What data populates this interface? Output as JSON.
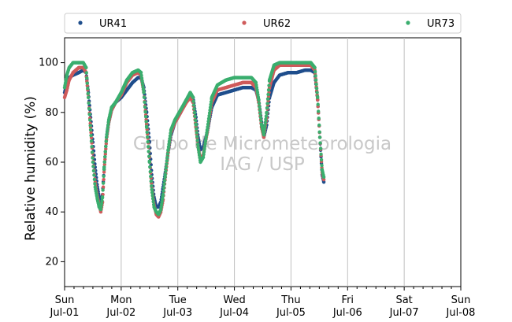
{
  "chart_data": {
    "type": "scatter",
    "ylabel": "Relative humidity (%)",
    "ylim": [
      10,
      110
    ],
    "yticks": [
      20,
      40,
      60,
      80,
      100
    ],
    "xlim": [
      0,
      7
    ],
    "xticks": [
      {
        "day": "Sun",
        "date": "Jul-01"
      },
      {
        "day": "Mon",
        "date": "Jul-02"
      },
      {
        "day": "Tue",
        "date": "Jul-03"
      },
      {
        "day": "Wed",
        "date": "Jul-04"
      },
      {
        "day": "Thu",
        "date": "Jul-05"
      },
      {
        "day": "Fri",
        "date": "Jul-06"
      },
      {
        "day": "Sat",
        "date": "Jul-07"
      },
      {
        "day": "Sun",
        "date": "Jul-08"
      }
    ],
    "grid": "vertical",
    "legend_position": "top",
    "watermark": [
      "Grupo de Micrometeorologia",
      "IAG / USP"
    ],
    "series": [
      {
        "name": "UR41",
        "color": "#1f4e8c",
        "points": [
          [
            0.0,
            88
          ],
          [
            0.04,
            92
          ],
          [
            0.08,
            94
          ],
          [
            0.15,
            95
          ],
          [
            0.25,
            96
          ],
          [
            0.33,
            97
          ],
          [
            0.38,
            96
          ],
          [
            0.42,
            88
          ],
          [
            0.46,
            78
          ],
          [
            0.5,
            68
          ],
          [
            0.54,
            58
          ],
          [
            0.58,
            50
          ],
          [
            0.61,
            46
          ],
          [
            0.64,
            44
          ],
          [
            0.67,
            47
          ],
          [
            0.7,
            58
          ],
          [
            0.74,
            70
          ],
          [
            0.78,
            76
          ],
          [
            0.83,
            81
          ],
          [
            0.9,
            84
          ],
          [
            1.0,
            86
          ],
          [
            1.1,
            89
          ],
          [
            1.2,
            92
          ],
          [
            1.3,
            94
          ],
          [
            1.35,
            94
          ],
          [
            1.4,
            90
          ],
          [
            1.45,
            80
          ],
          [
            1.5,
            68
          ],
          [
            1.54,
            55
          ],
          [
            1.58,
            46
          ],
          [
            1.62,
            42
          ],
          [
            1.66,
            42
          ],
          [
            1.7,
            44
          ],
          [
            1.74,
            50
          ],
          [
            1.78,
            56
          ],
          [
            1.83,
            64
          ],
          [
            1.88,
            71
          ],
          [
            1.95,
            76
          ],
          [
            2.05,
            80
          ],
          [
            2.15,
            85
          ],
          [
            2.22,
            87
          ],
          [
            2.27,
            86
          ],
          [
            2.32,
            78
          ],
          [
            2.36,
            70
          ],
          [
            2.4,
            65
          ],
          [
            2.45,
            66
          ],
          [
            2.52,
            72
          ],
          [
            2.6,
            82
          ],
          [
            2.7,
            87
          ],
          [
            2.85,
            88
          ],
          [
            3.0,
            89
          ],
          [
            3.15,
            90
          ],
          [
            3.3,
            90
          ],
          [
            3.38,
            89
          ],
          [
            3.43,
            85
          ],
          [
            3.48,
            76
          ],
          [
            3.52,
            70
          ],
          [
            3.57,
            75
          ],
          [
            3.62,
            86
          ],
          [
            3.7,
            92
          ],
          [
            3.8,
            95
          ],
          [
            3.95,
            96
          ],
          [
            4.1,
            96
          ],
          [
            4.25,
            97
          ],
          [
            4.35,
            97
          ],
          [
            4.42,
            96
          ],
          [
            4.47,
            85
          ],
          [
            4.51,
            70
          ],
          [
            4.55,
            55
          ],
          [
            4.58,
            52
          ]
        ]
      },
      {
        "name": "UR62",
        "color": "#cf5b5b",
        "points": [
          [
            0.0,
            86
          ],
          [
            0.04,
            89
          ],
          [
            0.08,
            93
          ],
          [
            0.15,
            96
          ],
          [
            0.25,
            98
          ],
          [
            0.33,
            98
          ],
          [
            0.38,
            96
          ],
          [
            0.42,
            86
          ],
          [
            0.46,
            74
          ],
          [
            0.5,
            62
          ],
          [
            0.54,
            52
          ],
          [
            0.58,
            46
          ],
          [
            0.61,
            43
          ],
          [
            0.64,
            40
          ],
          [
            0.67,
            44
          ],
          [
            0.7,
            57
          ],
          [
            0.74,
            69
          ],
          [
            0.78,
            76
          ],
          [
            0.83,
            81
          ],
          [
            0.9,
            84
          ],
          [
            1.0,
            87
          ],
          [
            1.1,
            92
          ],
          [
            1.2,
            95
          ],
          [
            1.3,
            96
          ],
          [
            1.35,
            95
          ],
          [
            1.4,
            88
          ],
          [
            1.45,
            75
          ],
          [
            1.5,
            62
          ],
          [
            1.54,
            50
          ],
          [
            1.58,
            43
          ],
          [
            1.62,
            39
          ],
          [
            1.66,
            38
          ],
          [
            1.7,
            40
          ],
          [
            1.74,
            45
          ],
          [
            1.78,
            54
          ],
          [
            1.83,
            64
          ],
          [
            1.88,
            72
          ],
          [
            1.95,
            76
          ],
          [
            2.05,
            80
          ],
          [
            2.15,
            84
          ],
          [
            2.22,
            86
          ],
          [
            2.27,
            84
          ],
          [
            2.32,
            74
          ],
          [
            2.36,
            66
          ],
          [
            2.4,
            61
          ],
          [
            2.45,
            63
          ],
          [
            2.52,
            72
          ],
          [
            2.6,
            84
          ],
          [
            2.7,
            89
          ],
          [
            2.85,
            90
          ],
          [
            3.0,
            91
          ],
          [
            3.15,
            92
          ],
          [
            3.3,
            92
          ],
          [
            3.38,
            90
          ],
          [
            3.43,
            84
          ],
          [
            3.48,
            74
          ],
          [
            3.52,
            70
          ],
          [
            3.57,
            78
          ],
          [
            3.62,
            90
          ],
          [
            3.7,
            97
          ],
          [
            3.8,
            99
          ],
          [
            3.95,
            99
          ],
          [
            4.1,
            99
          ],
          [
            4.25,
            99
          ],
          [
            4.35,
            99
          ],
          [
            4.42,
            97
          ],
          [
            4.47,
            85
          ],
          [
            4.51,
            70
          ],
          [
            4.55,
            56
          ],
          [
            4.58,
            53
          ]
        ]
      },
      {
        "name": "UR73",
        "color": "#3aae6e",
        "points": [
          [
            0.0,
            90
          ],
          [
            0.04,
            95
          ],
          [
            0.08,
            98
          ],
          [
            0.15,
            100
          ],
          [
            0.25,
            100
          ],
          [
            0.33,
            100
          ],
          [
            0.38,
            98
          ],
          [
            0.42,
            86
          ],
          [
            0.46,
            73
          ],
          [
            0.5,
            60
          ],
          [
            0.54,
            50
          ],
          [
            0.58,
            45
          ],
          [
            0.61,
            42
          ],
          [
            0.64,
            41
          ],
          [
            0.67,
            46
          ],
          [
            0.7,
            58
          ],
          [
            0.74,
            70
          ],
          [
            0.78,
            77
          ],
          [
            0.83,
            82
          ],
          [
            0.9,
            84
          ],
          [
            1.0,
            88
          ],
          [
            1.1,
            93
          ],
          [
            1.2,
            96
          ],
          [
            1.3,
            97
          ],
          [
            1.35,
            96
          ],
          [
            1.4,
            88
          ],
          [
            1.45,
            74
          ],
          [
            1.5,
            60
          ],
          [
            1.54,
            49
          ],
          [
            1.58,
            42
          ],
          [
            1.62,
            40
          ],
          [
            1.66,
            39
          ],
          [
            1.7,
            41
          ],
          [
            1.74,
            47
          ],
          [
            1.78,
            55
          ],
          [
            1.83,
            65
          ],
          [
            1.88,
            73
          ],
          [
            1.95,
            77
          ],
          [
            2.05,
            81
          ],
          [
            2.15,
            85
          ],
          [
            2.22,
            88
          ],
          [
            2.27,
            86
          ],
          [
            2.32,
            75
          ],
          [
            2.36,
            66
          ],
          [
            2.4,
            60
          ],
          [
            2.45,
            62
          ],
          [
            2.52,
            73
          ],
          [
            2.6,
            86
          ],
          [
            2.7,
            91
          ],
          [
            2.85,
            93
          ],
          [
            3.0,
            94
          ],
          [
            3.15,
            94
          ],
          [
            3.3,
            94
          ],
          [
            3.38,
            92
          ],
          [
            3.43,
            85
          ],
          [
            3.48,
            75
          ],
          [
            3.52,
            71
          ],
          [
            3.57,
            80
          ],
          [
            3.62,
            93
          ],
          [
            3.7,
            99
          ],
          [
            3.8,
            100
          ],
          [
            3.95,
            100
          ],
          [
            4.1,
            100
          ],
          [
            4.25,
            100
          ],
          [
            4.35,
            100
          ],
          [
            4.42,
            98
          ],
          [
            4.47,
            86
          ],
          [
            4.51,
            70
          ],
          [
            4.55,
            57
          ],
          [
            4.58,
            54
          ]
        ]
      }
    ]
  }
}
